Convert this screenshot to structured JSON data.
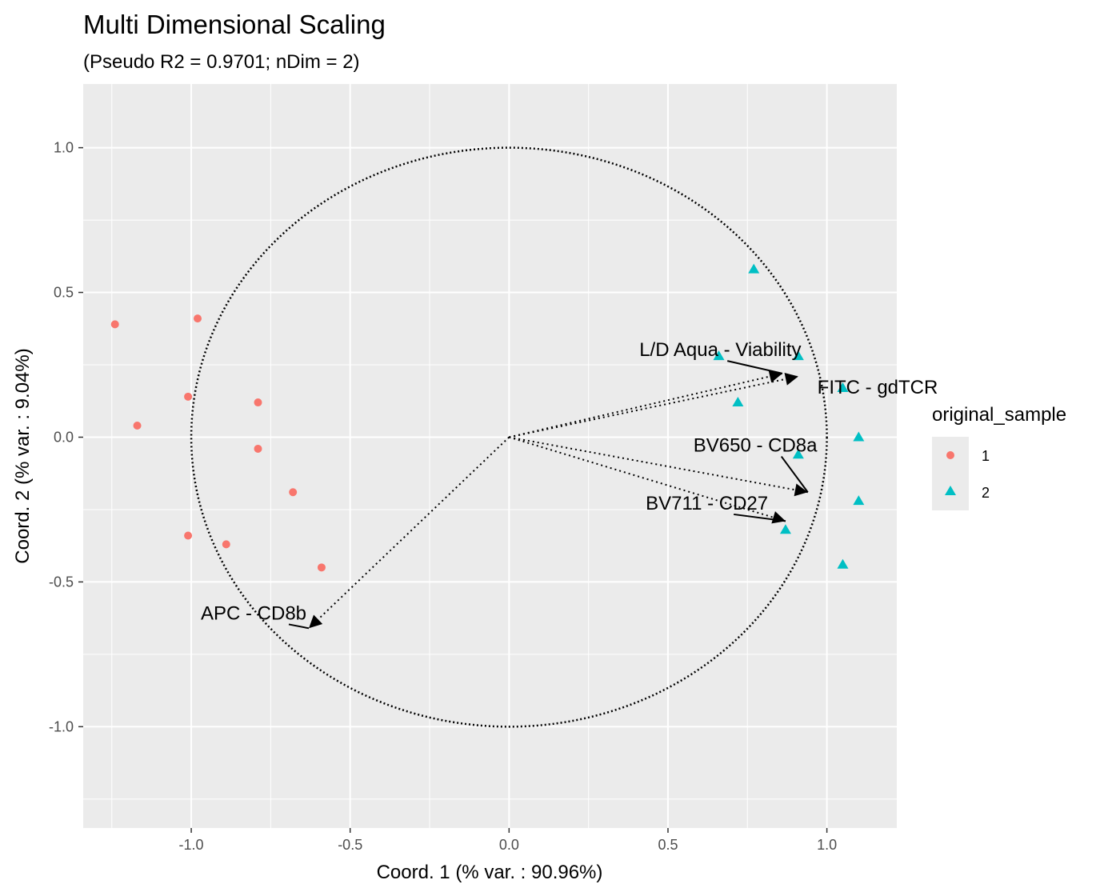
{
  "chart_data": {
    "type": "scatter",
    "title": "Multi Dimensional Scaling",
    "subtitle": "(Pseudo R2 = 0.9701; nDim = 2)",
    "xlabel": "Coord. 1 (% var. : 90.96%)",
    "ylabel": "Coord. 2 (% var. : 9.04%)",
    "xlim": [
      -1.34,
      1.22
    ],
    "ylim": [
      -1.35,
      1.22
    ],
    "xticks": [
      -1.0,
      -0.5,
      0.0,
      0.5,
      1.0
    ],
    "xtick_labels": [
      "-1.0",
      "-0.5",
      "0.0",
      "0.5",
      "1.0"
    ],
    "yticks": [
      -1.0,
      -0.5,
      0.0,
      0.5,
      1.0
    ],
    "ytick_labels": [
      "-1.0",
      "-0.5",
      "0.0",
      "0.5",
      "1.0"
    ],
    "grid": true,
    "unit_circle": true,
    "legend": {
      "title": "original_sample",
      "placement": "right",
      "entries": [
        {
          "label": "1",
          "shape": "circle",
          "color": "#F8766D"
        },
        {
          "label": "2",
          "shape": "triangle",
          "color": "#00BFC4"
        }
      ]
    },
    "series": [
      {
        "name": "1",
        "shape": "circle",
        "color": "#F8766D",
        "points": [
          {
            "x": -1.24,
            "y": 0.39
          },
          {
            "x": -0.98,
            "y": 0.41
          },
          {
            "x": -1.01,
            "y": 0.14
          },
          {
            "x": -1.17,
            "y": 0.04
          },
          {
            "x": -0.79,
            "y": 0.12
          },
          {
            "x": -0.79,
            "y": -0.04
          },
          {
            "x": -0.68,
            "y": -0.19
          },
          {
            "x": -1.01,
            "y": -0.34
          },
          {
            "x": -0.89,
            "y": -0.37
          },
          {
            "x": -0.59,
            "y": -0.45
          }
        ]
      },
      {
        "name": "2",
        "shape": "triangle",
        "color": "#00BFC4",
        "points": [
          {
            "x": 0.77,
            "y": 0.58
          },
          {
            "x": 0.66,
            "y": 0.28
          },
          {
            "x": 0.91,
            "y": 0.28
          },
          {
            "x": 0.72,
            "y": 0.12
          },
          {
            "x": 1.05,
            "y": 0.17
          },
          {
            "x": 1.1,
            "y": 0.0
          },
          {
            "x": 0.91,
            "y": -0.06
          },
          {
            "x": 1.1,
            "y": -0.22
          },
          {
            "x": 0.87,
            "y": -0.32
          },
          {
            "x": 1.05,
            "y": -0.44
          }
        ]
      }
    ],
    "arrows": [
      {
        "label": "L/D Aqua - Viability",
        "x": 0.86,
        "y": 0.22
      },
      {
        "label": "FITC - gdTCR",
        "x": 0.91,
        "y": 0.21
      },
      {
        "label": "BV650 - CD8a",
        "x": 0.94,
        "y": -0.19
      },
      {
        "label": "BV711 - CD27",
        "x": 0.87,
        "y": -0.29
      },
      {
        "label": "APC - CD8b",
        "x": -0.63,
        "y": -0.66
      }
    ],
    "label_anchors": [
      {
        "x": 0.41,
        "y": 0.28
      },
      {
        "x": 0.97,
        "y": 0.15
      },
      {
        "x": 0.58,
        "y": -0.05
      },
      {
        "x": 0.43,
        "y": -0.25
      },
      {
        "x": -0.97,
        "y": -0.63
      }
    ]
  }
}
